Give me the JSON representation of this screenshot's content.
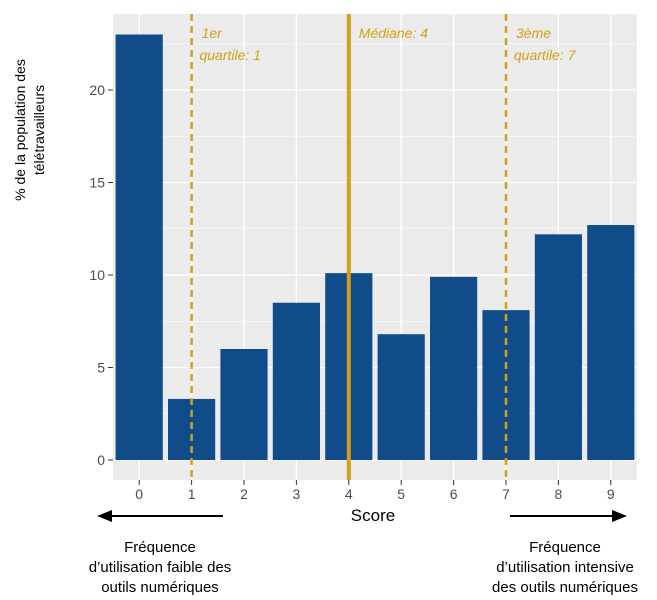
{
  "chart_data": {
    "type": "bar",
    "categories": [
      "0",
      "1",
      "2",
      "3",
      "4",
      "5",
      "6",
      "7",
      "8",
      "9"
    ],
    "values": [
      23.0,
      3.3,
      6.0,
      8.5,
      10.1,
      6.8,
      9.9,
      8.1,
      12.2,
      12.7
    ],
    "xlabel": "Score",
    "ylabel_lines": [
      "% de la population des",
      "télétravailleurs"
    ],
    "yticks": [
      "0",
      "5",
      "10",
      "15",
      "20"
    ],
    "xlim": [
      -0.5,
      9.5
    ],
    "ylim": [
      0,
      24.5
    ],
    "grid": true,
    "bar_color": "#0f4c89",
    "panel_color": "#ebebeb",
    "annotation_color": "#d4a017",
    "reference_lines": [
      {
        "x": 1,
        "style": "dashed",
        "label_lines": [
          "1er",
          " quartile: 1"
        ]
      },
      {
        "x": 4,
        "style": "solid",
        "label_lines": [
          "Médiane: 4"
        ]
      },
      {
        "x": 7,
        "style": "dashed",
        "label_lines": [
          "3ème",
          " quartile: 7"
        ]
      }
    ]
  },
  "notes": {
    "left": [
      "Fréquence",
      "d’utilisation faible des",
      "outils numériques"
    ],
    "right": [
      "Fréquence",
      "d’utilisation intensive",
      "des outils numériques"
    ]
  }
}
